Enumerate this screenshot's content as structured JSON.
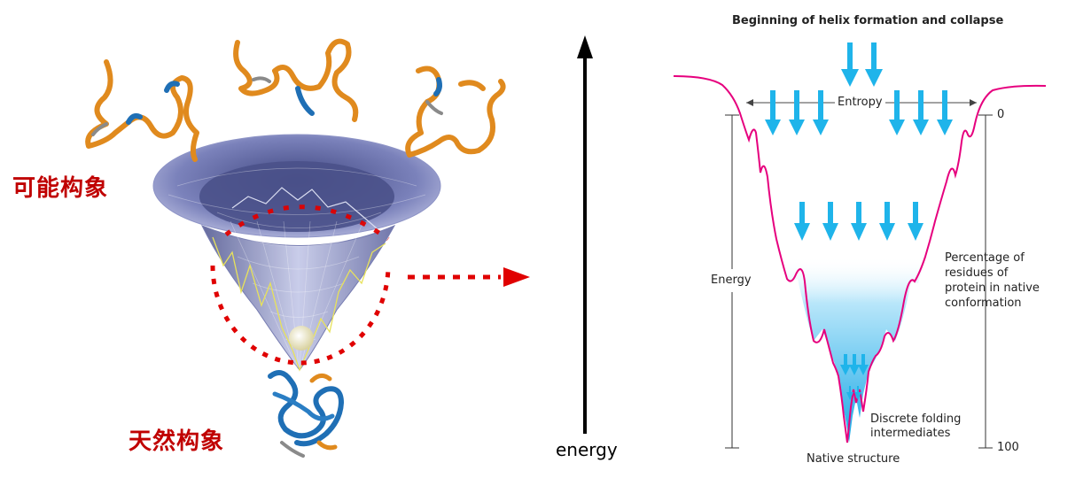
{
  "left_panel": {
    "possible_conformations_label": "可能构象",
    "native_conformation_label": "天然构象"
  },
  "energy_axis": {
    "label": "energy"
  },
  "right_panel": {
    "title": "Beginning of helix formation and collapse",
    "entropy_label": "Entropy",
    "energy_label": "Energy",
    "percentage_label_lines": [
      "Percentage of",
      "residues of",
      "protein in native",
      "conformation"
    ],
    "scale_top": "0",
    "scale_bottom": "100",
    "intermediates_label_lines": [
      "Discrete folding",
      "intermediates"
    ],
    "native_structure_label": "Native structure"
  },
  "colors": {
    "funnel_curve": "#e6007e",
    "arrow_blue": "#1fb4ea",
    "dotted_red": "#e00000",
    "label_red": "#c00000",
    "protein_orange": "#e08a1e",
    "protein_blue": "#1f6fb5",
    "funnel_surface": "#9aa0d0"
  }
}
